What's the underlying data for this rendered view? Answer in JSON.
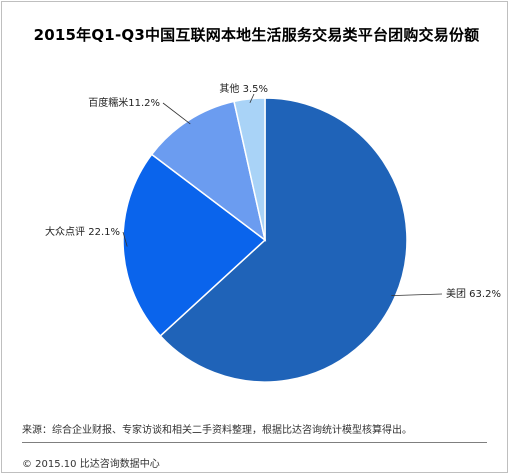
{
  "chart_data": {
    "type": "pie",
    "title": "2015年Q1-Q3中国互联网本地生活服务交易类平台团购交易份额",
    "slices": [
      {
        "label": "美团",
        "value": 63.2,
        "display": "美团 63.2%",
        "color": "#1f63b8"
      },
      {
        "label": "大众点评",
        "value": 22.1,
        "display": "大众点评 22.1%",
        "color": "#0a64ec"
      },
      {
        "label": "百度糯米",
        "value": 11.2,
        "display": "百度糯米11.2%",
        "color": "#6b9cf0"
      },
      {
        "label": "其他",
        "value": 3.5,
        "display": "其他 3.5%",
        "color": "#a9d3f7"
      }
    ],
    "legend": "none"
  },
  "source": "来源：综合企业财报、专家访谈和相关二手资料整理，根据比达咨询统计模型核算得出。",
  "footer": "© 2015.10  比达咨询数据中心"
}
